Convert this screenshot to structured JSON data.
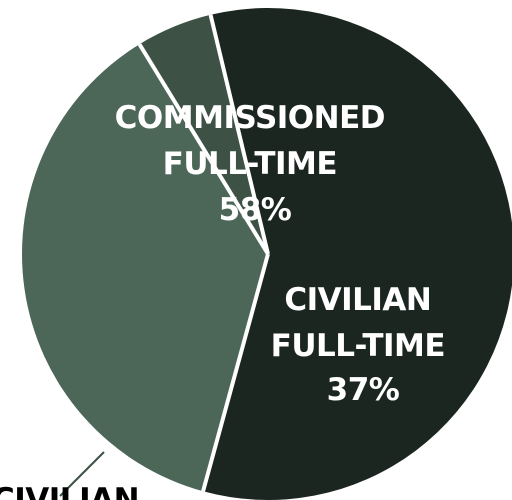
{
  "chart_data": {
    "type": "pie",
    "slices": [
      {
        "label_lines": [
          "COMMISSIONED",
          "FULL-TIME",
          "58%"
        ],
        "value": 58,
        "color": "#1c2621"
      },
      {
        "label_lines": [
          "CIVILIAN",
          "FULL-TIME",
          "37%"
        ],
        "value": 37,
        "color": "#4c6658"
      },
      {
        "label_lines": [
          "CIVILIAN"
        ],
        "value": 5,
        "color": "#3d5145"
      }
    ],
    "separator_color": "#ffffff",
    "leader_line_color": "#3d5145"
  }
}
